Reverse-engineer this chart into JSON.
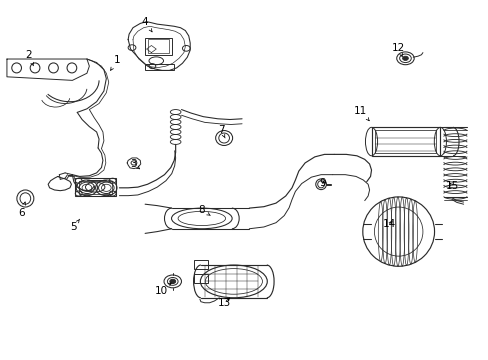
{
  "background_color": "#ffffff",
  "border_color": "#000000",
  "fig_width": 4.89,
  "fig_height": 3.6,
  "dpi": 100,
  "line_color": "#2a2a2a",
  "line_width": 0.7,
  "text_color": "#000000",
  "label_fontsize": 7.5,
  "labels": {
    "1": [
      0.238,
      0.838,
      0.22,
      0.8
    ],
    "2": [
      0.055,
      0.85,
      0.065,
      0.82
    ],
    "3": [
      0.27,
      0.545,
      0.285,
      0.53
    ],
    "4": [
      0.295,
      0.945,
      0.31,
      0.915
    ],
    "5": [
      0.148,
      0.368,
      0.16,
      0.39
    ],
    "6": [
      0.04,
      0.408,
      0.048,
      0.44
    ],
    "7": [
      0.452,
      0.64,
      0.46,
      0.618
    ],
    "8": [
      0.412,
      0.415,
      0.43,
      0.4
    ],
    "9": [
      0.662,
      0.492,
      0.66,
      0.49
    ],
    "10": [
      0.328,
      0.188,
      0.35,
      0.212
    ],
    "11": [
      0.74,
      0.695,
      0.758,
      0.665
    ],
    "12": [
      0.818,
      0.87,
      0.826,
      0.845
    ],
    "13": [
      0.458,
      0.155,
      0.475,
      0.175
    ],
    "14": [
      0.798,
      0.375,
      0.81,
      0.39
    ],
    "15": [
      0.928,
      0.482,
      0.92,
      0.5
    ]
  }
}
